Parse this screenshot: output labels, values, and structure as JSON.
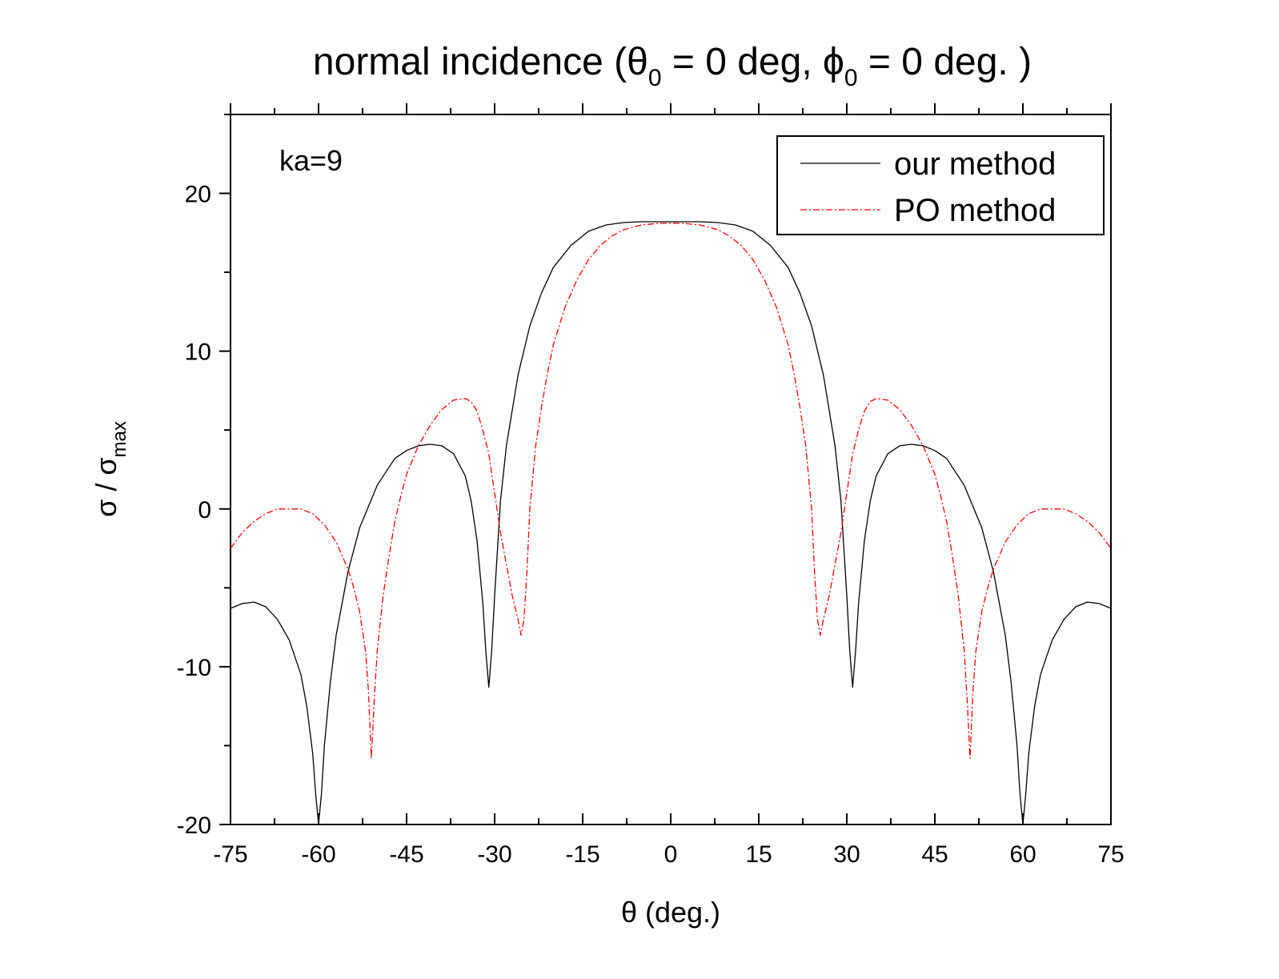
{
  "chart_data": {
    "type": "line",
    "title": {
      "prefix": "normal incidence (",
      "theta": "θ",
      "theta_sub": "0",
      "mid": " = 0 deg, ",
      "phi": "ϕ",
      "phi_sub": "0",
      "suffix": " = 0 deg. )"
    },
    "xlabel": "θ (deg.)",
    "ylabel": {
      "main": "σ / σ",
      "sub": "max"
    },
    "annotation": "ka=9",
    "xlim": [
      -75,
      75
    ],
    "ylim": [
      -20,
      25
    ],
    "xticks": [
      -75,
      -60,
      -45,
      -30,
      -15,
      0,
      15,
      30,
      45,
      60,
      75
    ],
    "xtick_labels": [
      "-75",
      "-60",
      "-45",
      "-30",
      "-15",
      "0",
      "15",
      "30",
      "45",
      "60",
      "75"
    ],
    "yticks": [
      -20,
      -10,
      0,
      10,
      20
    ],
    "ytick_labels": [
      "-20",
      "-10",
      "0",
      "10",
      "20"
    ],
    "grid": false,
    "legend_position": "top-right",
    "series": [
      {
        "name": "our method",
        "color": "#000000",
        "style": "solid",
        "x": [
          -75,
          -73,
          -71,
          -69,
          -67,
          -65,
          -63,
          -62,
          -61,
          -60.5,
          -60,
          -59.5,
          -59,
          -58,
          -57,
          -55,
          -53,
          -50,
          -47,
          -45,
          -43,
          -41,
          -39,
          -37,
          -35,
          -34,
          -33,
          -32,
          -31.5,
          -31,
          -30.5,
          -30,
          -29,
          -28,
          -26,
          -24,
          -22,
          -20,
          -17,
          -14,
          -11,
          -8,
          -5,
          -3,
          0,
          3,
          5,
          8,
          11,
          14,
          17,
          20,
          22,
          24,
          26,
          28,
          29,
          30,
          30.5,
          31,
          31.5,
          32,
          33,
          34,
          35,
          37,
          39,
          41,
          43,
          45,
          47,
          50,
          53,
          55,
          57,
          58,
          59,
          59.5,
          60,
          60.5,
          61,
          62,
          63,
          65,
          67,
          69,
          71,
          73,
          75
        ],
        "y": [
          -6.3,
          -6.0,
          -5.9,
          -6.2,
          -7.0,
          -8.3,
          -10.5,
          -12.5,
          -15.5,
          -18.0,
          -20.0,
          -18.0,
          -15.0,
          -11.0,
          -8.0,
          -4.0,
          -1.2,
          1.5,
          3.2,
          3.7,
          4.0,
          4.1,
          4.0,
          3.5,
          2.1,
          0.5,
          -2.0,
          -6.0,
          -9.0,
          -11.3,
          -9.0,
          -5.5,
          0.5,
          4.0,
          8.5,
          11.6,
          13.7,
          15.3,
          16.7,
          17.6,
          18.0,
          18.15,
          18.2,
          18.2,
          18.2,
          18.2,
          18.2,
          18.15,
          18.0,
          17.6,
          16.7,
          15.3,
          13.7,
          11.6,
          8.5,
          4.0,
          0.5,
          -5.5,
          -9.0,
          -11.3,
          -9.0,
          -6.0,
          -2.0,
          0.5,
          2.1,
          3.5,
          4.0,
          4.1,
          4.0,
          3.7,
          3.2,
          1.5,
          -1.2,
          -4.0,
          -8.0,
          -11.0,
          -15.0,
          -18.0,
          -20.0,
          -18.0,
          -15.5,
          -12.5,
          -10.5,
          -8.3,
          -7.0,
          -6.2,
          -5.9,
          -6.0,
          -6.3
        ]
      },
      {
        "name": "PO method",
        "color": "#ff0000",
        "style": "dash-dot",
        "x": [
          -75,
          -73,
          -71,
          -69,
          -67,
          -65,
          -63,
          -61,
          -59,
          -57,
          -55,
          -54,
          -53,
          -52,
          -51.5,
          -51,
          -50.5,
          -50,
          -49,
          -48,
          -47,
          -46,
          -45,
          -43,
          -41,
          -39,
          -37,
          -35,
          -34,
          -33,
          -32,
          -31,
          -30,
          -29,
          -28,
          -27,
          -26,
          -25.5,
          -25,
          -24.5,
          -24,
          -23,
          -22,
          -21,
          -20,
          -18,
          -16,
          -14,
          -12,
          -10,
          -8,
          -5,
          -2,
          0,
          2,
          5,
          8,
          10,
          12,
          14,
          16,
          18,
          20,
          21,
          22,
          23,
          24,
          24.5,
          25,
          25.5,
          26,
          27,
          28,
          29,
          30,
          31,
          32,
          33,
          34,
          35,
          37,
          39,
          41,
          43,
          45,
          46,
          47,
          48,
          49,
          50,
          50.5,
          51,
          51.5,
          52,
          53,
          54,
          55,
          57,
          59,
          61,
          63,
          65,
          67,
          69,
          71,
          73,
          75
        ],
        "y": [
          -2.5,
          -1.5,
          -0.8,
          -0.3,
          0.0,
          0.0,
          0.0,
          -0.3,
          -1.0,
          -2.1,
          -3.8,
          -5.0,
          -6.5,
          -9.0,
          -11.5,
          -15.8,
          -12.0,
          -9.0,
          -5.5,
          -3.0,
          -0.8,
          0.8,
          2.2,
          4.0,
          5.3,
          6.3,
          6.9,
          7.0,
          6.8,
          6.2,
          5.0,
          3.5,
          1.0,
          -1.5,
          -3.5,
          -5.5,
          -7.0,
          -8.0,
          -7.0,
          -4.0,
          0.0,
          4.0,
          6.5,
          8.6,
          10.4,
          12.8,
          14.5,
          15.8,
          16.7,
          17.3,
          17.7,
          18.0,
          18.1,
          18.1,
          18.1,
          18.0,
          17.7,
          17.3,
          16.7,
          15.8,
          14.5,
          12.8,
          10.4,
          8.6,
          6.5,
          4.0,
          0.0,
          -4.0,
          -7.0,
          -8.0,
          -7.0,
          -5.5,
          -3.5,
          -1.5,
          1.0,
          3.5,
          5.0,
          6.2,
          6.8,
          7.0,
          6.9,
          6.3,
          5.3,
          4.0,
          2.2,
          0.8,
          -0.8,
          -3.0,
          -5.5,
          -9.0,
          -12.0,
          -15.8,
          -11.5,
          -9.0,
          -6.5,
          -5.0,
          -3.8,
          -2.1,
          -1.0,
          -0.3,
          0.0,
          0.0,
          0.0,
          -0.3,
          -0.8,
          -1.5,
          -2.5
        ]
      }
    ]
  }
}
